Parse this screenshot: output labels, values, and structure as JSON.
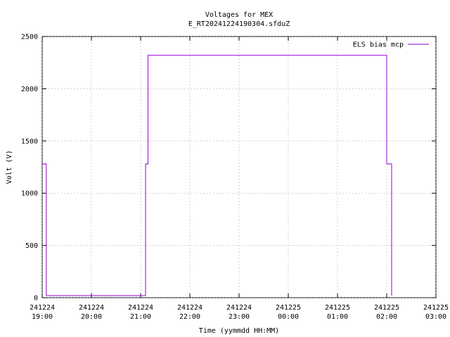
{
  "chart_data": {
    "type": "line",
    "title": "Voltages for MEX",
    "subtitle": "E_RT20241224190304.sfduZ",
    "x_label": "Time (yymmdd HH:MM)",
    "y_label": "Volt (V)",
    "x": [
      "241224 19:00",
      "241224 19:05",
      "241224 19:05",
      "241224 21:06",
      "241224 21:06",
      "241224 21:09",
      "241224 21:09",
      "241225 02:00",
      "241225 02:00",
      "241225 02:06",
      "241225 02:06"
    ],
    "series": [
      {
        "name": "ELS bias mcp",
        "color": "#9400d3",
        "values": [
          1280,
          1280,
          20,
          20,
          1280,
          1280,
          2320,
          2320,
          1280,
          1280,
          20
        ]
      }
    ],
    "xlim": [
      "241224 19:00",
      "241225 03:00"
    ],
    "xticks": [
      "241224 19:00",
      "241224 20:00",
      "241224 21:00",
      "241224 22:00",
      "241224 23:00",
      "241225 00:00",
      "241225 01:00",
      "241225 02:00",
      "241225 03:00"
    ],
    "ylim": [
      0,
      2500
    ],
    "yticks": [
      0,
      500,
      1000,
      1500,
      2000,
      2500
    ],
    "grid": true,
    "legend": "top-right"
  }
}
